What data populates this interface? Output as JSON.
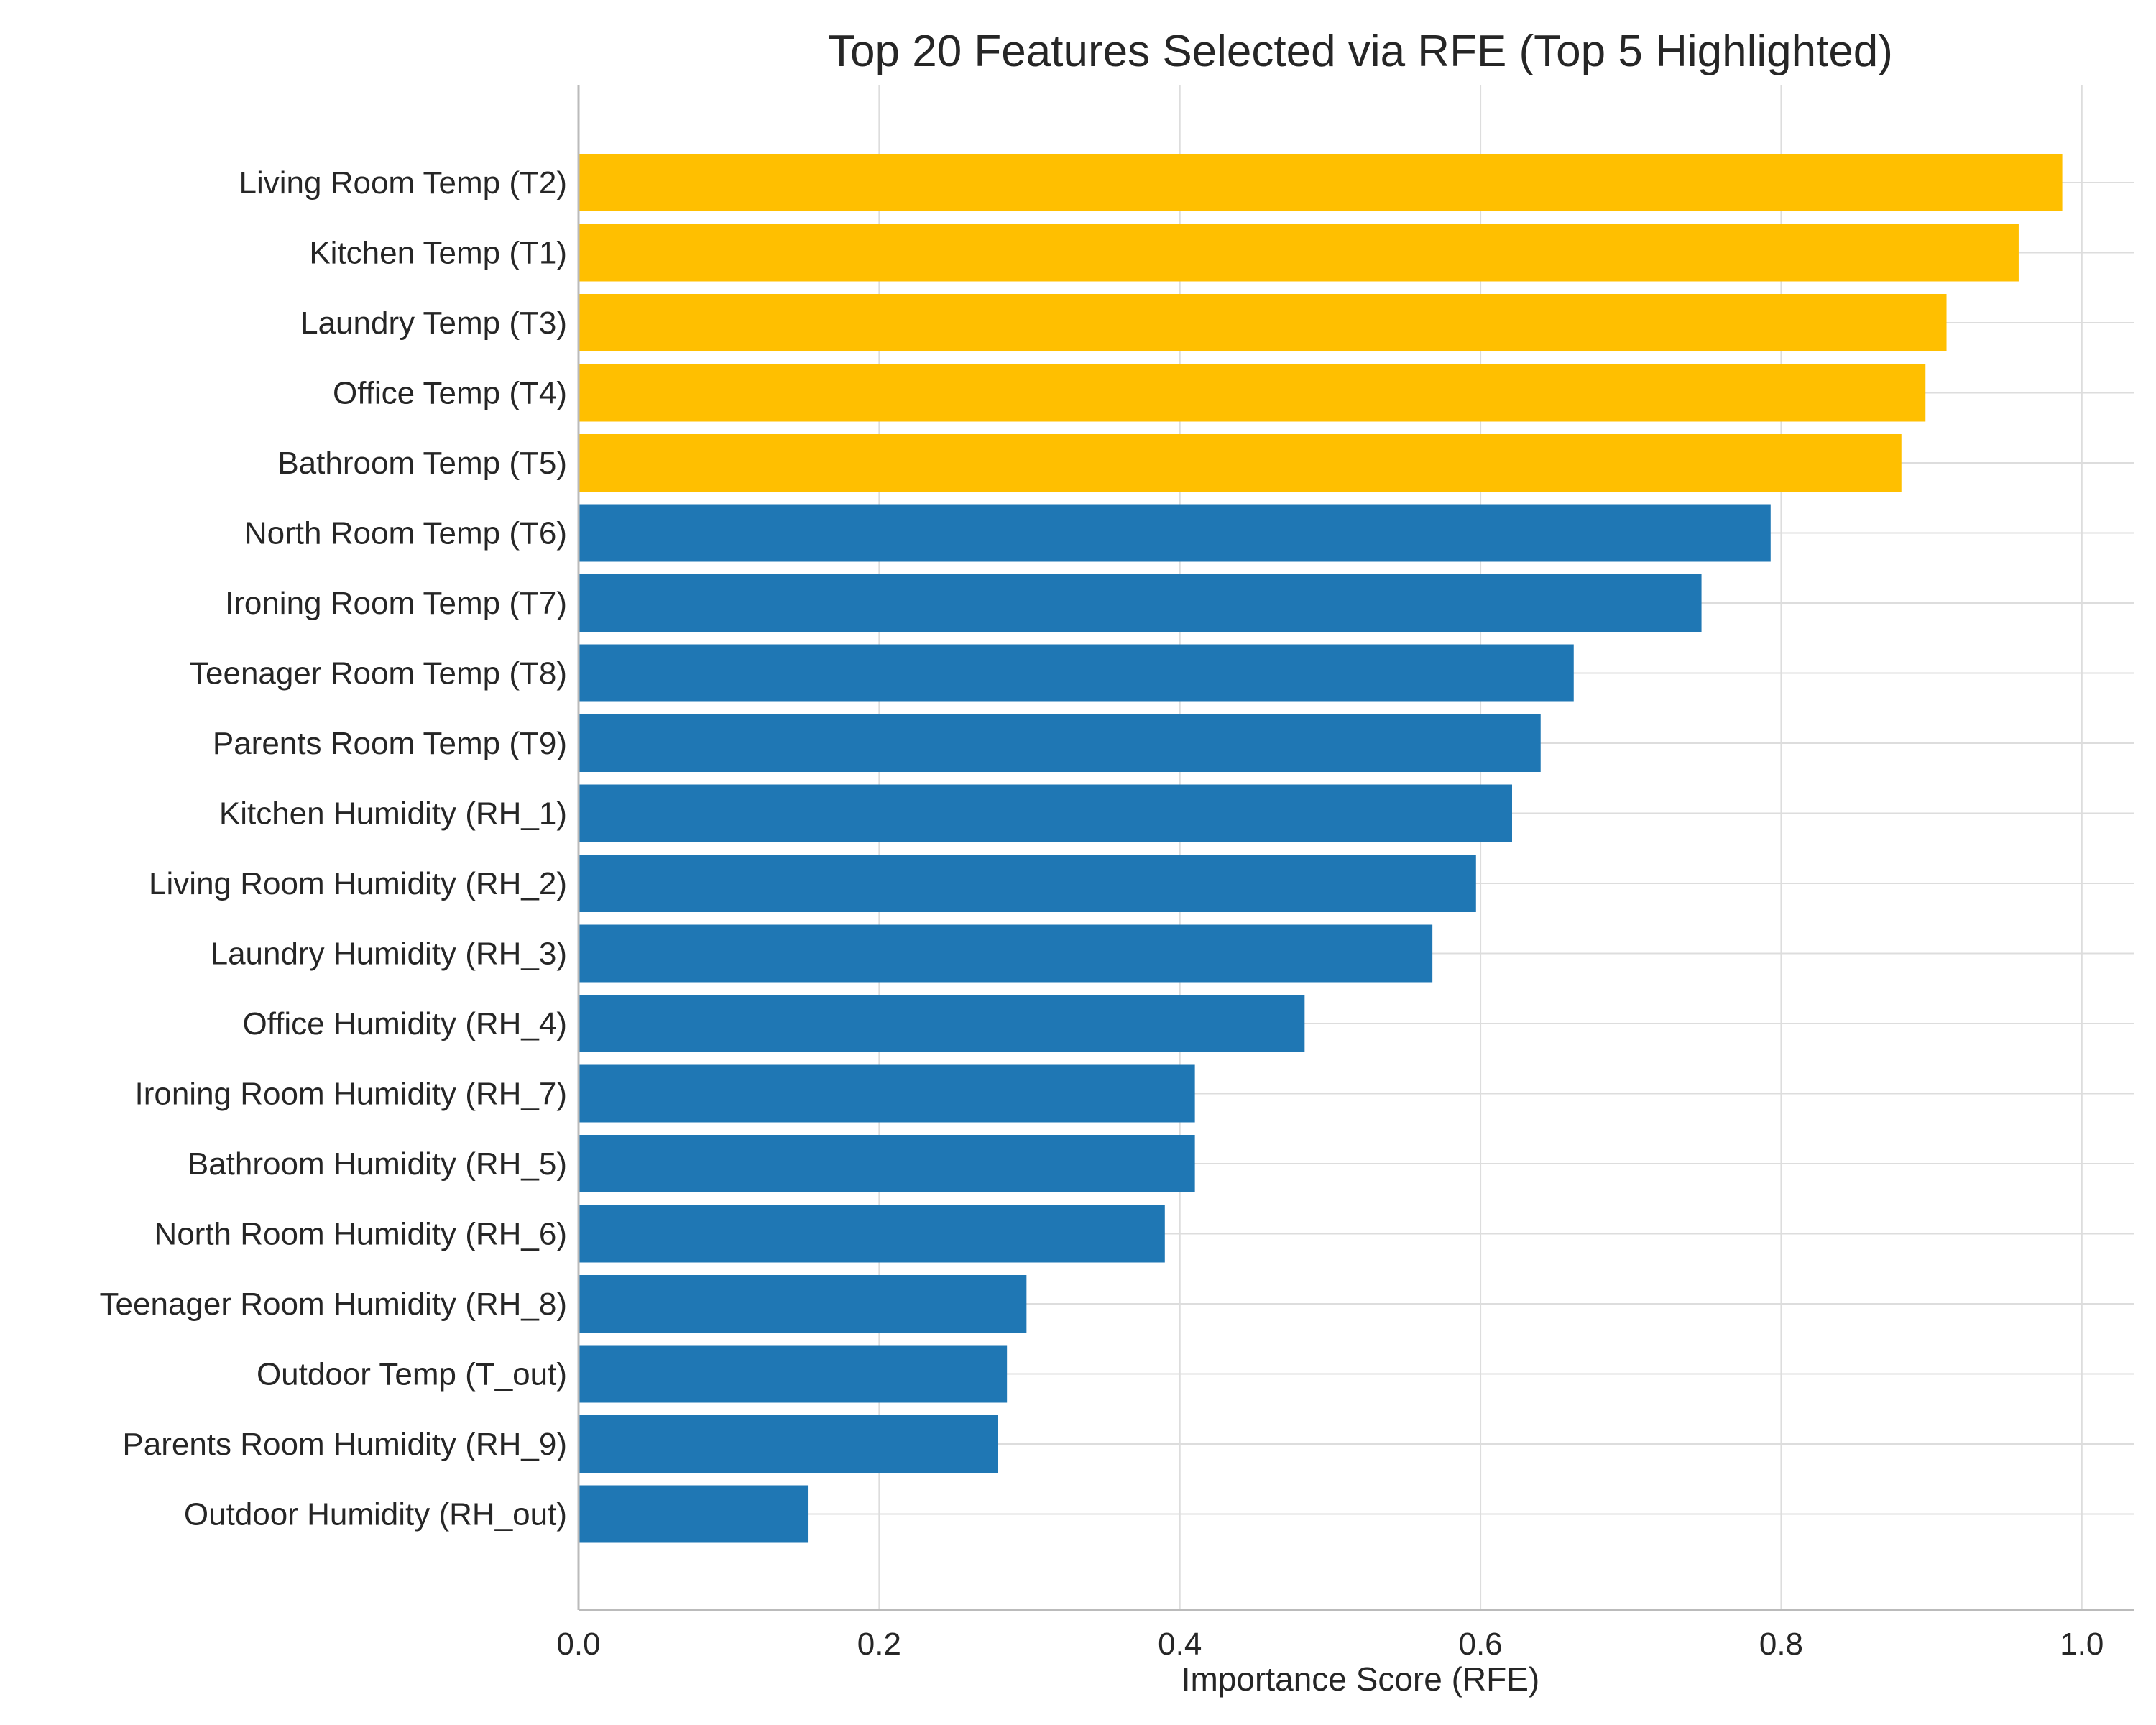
{
  "chart_data": {
    "type": "bar",
    "orientation": "horizontal",
    "title": "Top 20 Features Selected via RFE (Top 5 Highlighted)",
    "xlabel": "Importance Score (RFE)",
    "ylabel": "",
    "xlim": [
      0,
      1.035
    ],
    "xticks": [
      0.0,
      0.2,
      0.4,
      0.6,
      0.8,
      1.0
    ],
    "xtick_labels": [
      "0.0",
      "0.2",
      "0.4",
      "0.6",
      "0.8",
      "1.0"
    ],
    "grid": true,
    "highlight_count": 5,
    "colors": {
      "highlight": "#FFBF00",
      "default": "#1F77B4",
      "grid": "#DDDDDD",
      "axis": "#BBBBBB"
    },
    "categories": [
      "Living Room Temp (T2)",
      "Kitchen Temp (T1)",
      "Laundry Temp (T3)",
      "Office Temp (T4)",
      "Bathroom Temp (T5)",
      "North Room Temp (T6)",
      "Ironing Room Temp (T7)",
      "Teenager Room Temp (T8)",
      "Parents Room Temp (T9)",
      "Kitchen Humidity (RH_1)",
      "Living Room Humidity (RH_2)",
      "Laundry Humidity (RH_3)",
      "Office Humidity (RH_4)",
      "Ironing Room Humidity (RH_7)",
      "Bathroom Humidity (RH_5)",
      "North Room Humidity (RH_6)",
      "Teenager Room Humidity (RH_8)",
      "Outdoor Temp (T_out)",
      "Parents Room Humidity (RH_9)",
      "Outdoor Humidity (RH_out)"
    ],
    "values": [
      0.987,
      0.958,
      0.91,
      0.896,
      0.88,
      0.793,
      0.747,
      0.662,
      0.64,
      0.621,
      0.597,
      0.568,
      0.483,
      0.41,
      0.41,
      0.39,
      0.298,
      0.285,
      0.279,
      0.153
    ]
  }
}
